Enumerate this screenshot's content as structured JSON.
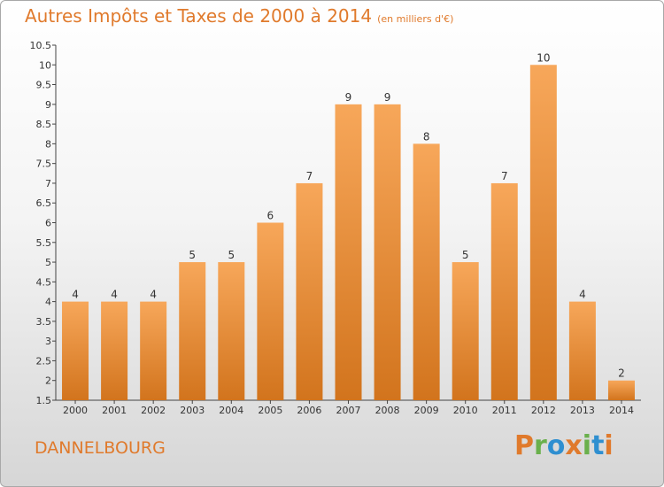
{
  "header": {
    "title": "Autres Impôts et Taxes de 2000 à 2014",
    "unit": "(en milliers d'€)"
  },
  "footer": {
    "commune": "DANNELBOURG",
    "logo_text": "Proxiti"
  },
  "colors": {
    "accent": "#e07a2c",
    "bar_top": "#f7a75a",
    "bar_bottom": "#d2741d"
  },
  "chart_data": {
    "type": "bar",
    "categories": [
      "2000",
      "2001",
      "2002",
      "2003",
      "2004",
      "2005",
      "2006",
      "2007",
      "2008",
      "2009",
      "2010",
      "2011",
      "2012",
      "2013",
      "2014"
    ],
    "values": [
      4,
      4,
      4,
      5,
      5,
      6,
      7,
      9,
      9,
      8,
      5,
      7,
      10,
      4,
      2
    ],
    "ylim": [
      1.5,
      10.5
    ],
    "yticks": [
      "1.5",
      "2",
      "2.5",
      "3",
      "3.5",
      "4",
      "4.5",
      "5",
      "5.5",
      "6",
      "6.5",
      "7",
      "7.5",
      "8",
      "8.5",
      "9",
      "9.5",
      "10",
      "10.5"
    ],
    "grid": false
  }
}
